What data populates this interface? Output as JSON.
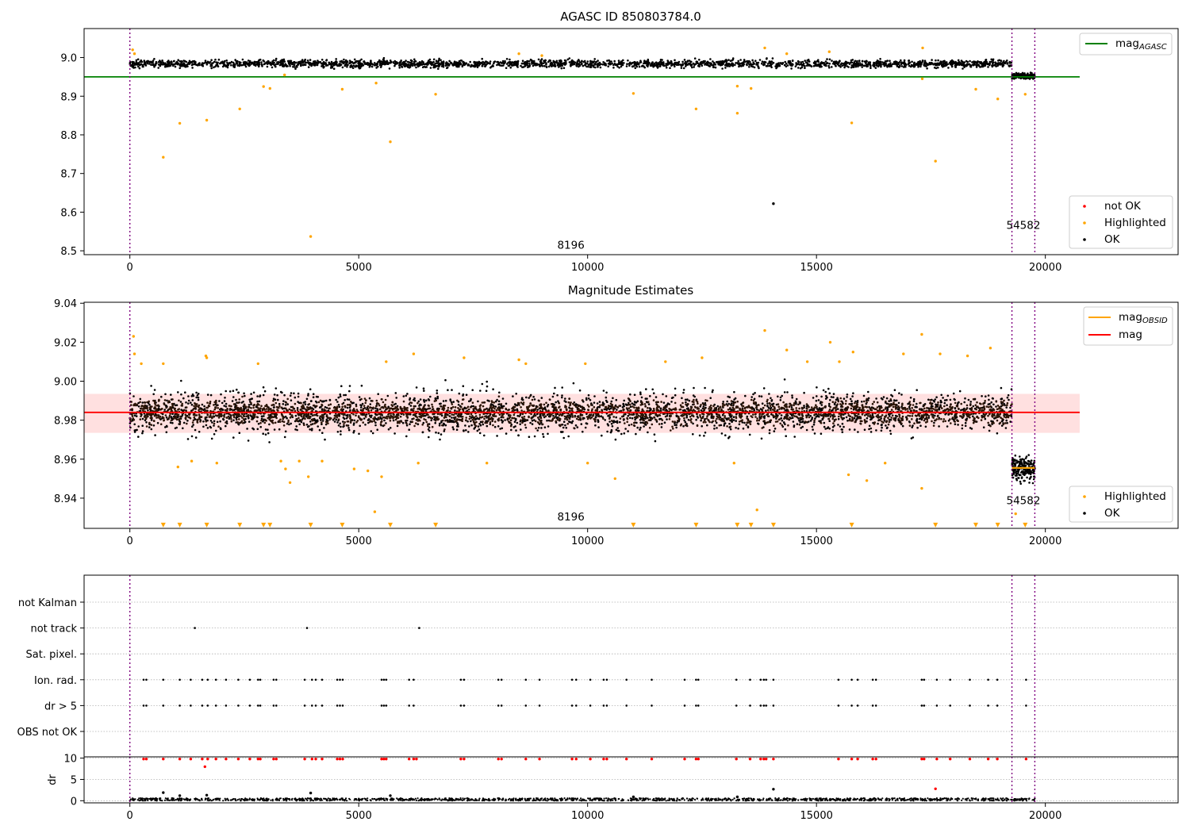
{
  "chart_data": [
    {
      "type": "scatter",
      "title": "AGASC ID 850803784.0",
      "xlim": [
        -1000,
        22900
      ],
      "ylim": [
        8.49,
        9.075
      ],
      "xticks": [
        0,
        5000,
        10000,
        15000,
        20000
      ],
      "yticks": [
        8.5,
        8.6,
        8.7,
        8.8,
        8.9,
        9.0
      ],
      "ytick_decimals": 1,
      "vlines": [
        0,
        19270,
        19770
      ],
      "annotations": [
        {
          "text": "8196",
          "x": 9635,
          "y": 8.505
        },
        {
          "text": "54582",
          "x": 19520,
          "y": 8.557
        }
      ],
      "hline": {
        "name": "mag_AGASC",
        "y": 8.95,
        "x": [
          -1000,
          20750
        ],
        "color": "#008000"
      },
      "bands": [
        {
          "x": [
            0,
            19270
          ],
          "center": 8.984,
          "halfwidth": 0.018,
          "color": "#000000"
        },
        {
          "x": [
            19270,
            19770
          ],
          "center": 8.952,
          "halfwidth": 0.012,
          "color": "#000000"
        }
      ],
      "series": [
        {
          "name": "not OK",
          "color": "#ff0000",
          "points": []
        },
        {
          "name": "Highlighted",
          "color": "#ffa500",
          "points": [
            [
              60,
              9.02
            ],
            [
              100,
              9.01
            ],
            [
              730,
              8.742
            ],
            [
              1090,
              8.83
            ],
            [
              1680,
              8.838
            ],
            [
              2400,
              8.867
            ],
            [
              2920,
              8.925
            ],
            [
              3060,
              8.92
            ],
            [
              3380,
              8.955
            ],
            [
              3950,
              8.537
            ],
            [
              4640,
              8.918
            ],
            [
              5380,
              8.934
            ],
            [
              5690,
              8.782
            ],
            [
              6680,
              8.905
            ],
            [
              8500,
              9.01
            ],
            [
              9000,
              9.005
            ],
            [
              11000,
              8.907
            ],
            [
              12370,
              8.867
            ],
            [
              13270,
              8.856
            ],
            [
              13270,
              8.926
            ],
            [
              13570,
              8.92
            ],
            [
              13870,
              9.025
            ],
            [
              14350,
              9.01
            ],
            [
              15280,
              9.015
            ],
            [
              15770,
              8.831
            ],
            [
              17320,
              9.025
            ],
            [
              17600,
              8.732
            ],
            [
              18480,
              8.918
            ],
            [
              18960,
              8.893
            ],
            [
              19560,
              8.905
            ],
            [
              17310,
              8.945
            ]
          ]
        },
        {
          "name": "OK",
          "color": "#000000",
          "points": [
            [
              14060,
              8.622
            ]
          ]
        }
      ],
      "legend": [
        {
          "label_main": "mag",
          "label_sub": "AGASC",
          "kind": "line",
          "color": "#008000"
        }
      ],
      "legend2": [
        {
          "label": "not OK",
          "kind": "dot",
          "color": "#ff0000"
        },
        {
          "label": "Highlighted",
          "kind": "dot",
          "color": "#ffa500"
        },
        {
          "label": "OK",
          "kind": "dot",
          "color": "#000000"
        }
      ]
    },
    {
      "type": "scatter",
      "title": "Magnitude Estimates",
      "xlim": [
        -1000,
        22900
      ],
      "ylim": [
        8.9245,
        9.0405
      ],
      "xticks": [
        0,
        5000,
        10000,
        15000,
        20000
      ],
      "yticks": [
        8.94,
        8.96,
        8.98,
        9.0,
        9.02,
        9.04
      ],
      "ytick_decimals": 2,
      "vlines": [
        0,
        19270,
        19770
      ],
      "annotations": [
        {
          "text": "8196",
          "x": 9635,
          "y": 8.9285
        },
        {
          "text": "54582",
          "x": 19520,
          "y": 8.937
        }
      ],
      "hline": {
        "name": "mag",
        "y": 8.984,
        "x": [
          -1000,
          20750
        ],
        "color": "#ff0000"
      },
      "shade": {
        "y": [
          8.9735,
          8.9935
        ],
        "x": [
          -1000,
          20750
        ],
        "color": "#ffcccc"
      },
      "segment": {
        "name": "mag_OBSID",
        "y": 8.9555,
        "x": [
          19270,
          19770
        ],
        "color": "#ffa500"
      },
      "bands": [
        {
          "x": [
            0,
            19270
          ],
          "center": 8.984,
          "halfwidth": 0.02,
          "color": "#000000"
        },
        {
          "x": [
            19270,
            19770
          ],
          "center": 8.955,
          "halfwidth": 0.011,
          "color": "#000000"
        },
        {
          "x": [
            0,
            19270
          ],
          "center": 8.984,
          "halfwidth": 0.011,
          "color": "#2b1406"
        }
      ],
      "series": [
        {
          "name": "Highlighted",
          "color": "#ffa500",
          "points": [
            [
              80,
              9.023
            ],
            [
              100,
              9.014
            ],
            [
              250,
              9.009
            ],
            [
              730,
              9.009
            ],
            [
              1050,
              8.956
            ],
            [
              1350,
              8.959
            ],
            [
              1660,
              9.013
            ],
            [
              1680,
              9.012
            ],
            [
              1900,
              8.958
            ],
            [
              2800,
              9.009
            ],
            [
              3300,
              8.959
            ],
            [
              3400,
              8.955
            ],
            [
              3500,
              8.948
            ],
            [
              3700,
              8.959
            ],
            [
              3900,
              8.951
            ],
            [
              4200,
              8.959
            ],
            [
              4900,
              8.955
            ],
            [
              5200,
              8.954
            ],
            [
              5350,
              8.933
            ],
            [
              5500,
              8.951
            ],
            [
              5600,
              9.01
            ],
            [
              6200,
              9.014
            ],
            [
              6300,
              8.958
            ],
            [
              7300,
              9.012
            ],
            [
              7800,
              8.958
            ],
            [
              8500,
              9.011
            ],
            [
              8650,
              9.009
            ],
            [
              9950,
              9.009
            ],
            [
              10000,
              8.958
            ],
            [
              10600,
              8.95
            ],
            [
              11700,
              9.01
            ],
            [
              12500,
              9.012
            ],
            [
              13200,
              8.958
            ],
            [
              13700,
              8.934
            ],
            [
              13870,
              9.026
            ],
            [
              14350,
              9.016
            ],
            [
              14800,
              9.01
            ],
            [
              15300,
              9.02
            ],
            [
              15500,
              9.01
            ],
            [
              15700,
              8.952
            ],
            [
              15800,
              9.015
            ],
            [
              16100,
              8.949
            ],
            [
              16500,
              8.958
            ],
            [
              16900,
              9.014
            ],
            [
              17300,
              9.024
            ],
            [
              17300,
              8.945
            ],
            [
              17700,
              9.014
            ],
            [
              18300,
              9.013
            ],
            [
              18800,
              9.017
            ],
            [
              19350,
              8.932
            ]
          ]
        },
        {
          "name": "OK",
          "color": "#000000",
          "points": []
        }
      ],
      "markers": {
        "color": "#ffa500",
        "y": 8.9262,
        "x": [
          730,
          1090,
          1680,
          2400,
          2920,
          3060,
          3950,
          4640,
          5690,
          6680,
          11000,
          12370,
          13270,
          13570,
          14060,
          15770,
          17600,
          18480,
          18960,
          19560
        ]
      },
      "legend": [
        {
          "label_main": "mag",
          "label_sub": "OBSID",
          "kind": "line",
          "color": "#ffa500"
        },
        {
          "label": "mag",
          "kind": "line",
          "color": "#ff0000"
        }
      ],
      "legend2": [
        {
          "label": "Highlighted",
          "kind": "dot",
          "color": "#ffa500"
        },
        {
          "label": "OK",
          "kind": "dot",
          "color": "#000000"
        }
      ]
    },
    {
      "type": "scatter",
      "title": "",
      "xlim": [
        -1000,
        22900
      ],
      "categories": [
        "not Kalman",
        "not track",
        "Sat. pixel.",
        "Ion. rad.",
        "dr > 5",
        "OBS not OK"
      ],
      "vlines": [
        0,
        19270,
        19770
      ],
      "flags": {
        "not track": [
          1420,
          3870,
          6320
        ],
        "Ion. rad.": [
          300,
          360,
          730,
          1090,
          1330,
          1580,
          1700,
          1880,
          2100,
          2370,
          2620,
          2800,
          2850,
          3140,
          3200,
          3820,
          3980,
          4060,
          4200,
          4530,
          4590,
          4650,
          5500,
          5550,
          5600,
          6100,
          6200,
          7230,
          7300,
          8050,
          8120,
          8650,
          8950,
          9660,
          9750,
          10060,
          10350,
          10420,
          10850,
          11400,
          12120,
          12370,
          12420,
          13250,
          13550,
          13780,
          13850,
          13900,
          14060,
          15480,
          15770,
          15900,
          16230,
          16300,
          17300,
          17350,
          17630,
          17920,
          18350,
          18750,
          18950,
          19580
        ],
        "dr > 5": [
          300,
          360,
          730,
          1090,
          1330,
          1580,
          1700,
          1880,
          2100,
          2370,
          2620,
          2800,
          2850,
          3140,
          3200,
          3820,
          3980,
          4060,
          4200,
          4530,
          4590,
          4650,
          5500,
          5550,
          5600,
          6100,
          6200,
          7230,
          7300,
          8050,
          8120,
          8650,
          8950,
          9660,
          9750,
          10060,
          10350,
          10420,
          10850,
          11400,
          12120,
          12370,
          12420,
          13250,
          13550,
          13780,
          13850,
          13900,
          14060,
          15480,
          15770,
          15900,
          16230,
          16300,
          17300,
          17350,
          17630,
          17920,
          18350,
          18750,
          18950,
          19580
        ]
      }
    },
    {
      "type": "scatter",
      "ylabel": "dr",
      "xlim": [
        -1000,
        22900
      ],
      "ylim": [
        -0.5,
        10.3
      ],
      "xticks": [
        0,
        5000,
        10000,
        15000,
        20000
      ],
      "yticks": [
        0,
        5,
        10
      ],
      "ytick_decimals": 0,
      "vlines": [
        0,
        19270,
        19770
      ],
      "baseline": {
        "x": [
          0,
          19770
        ],
        "y_min": 0.0,
        "y_max": 0.6,
        "color": "#000000"
      },
      "series": [
        {
          "name": "not OK",
          "color": "#ff0000",
          "points": [
            [
              300,
              9.8
            ],
            [
              360,
              9.8
            ],
            [
              730,
              9.8
            ],
            [
              1090,
              9.8
            ],
            [
              1330,
              9.8
            ],
            [
              1580,
              9.8
            ],
            [
              1640,
              8.0
            ],
            [
              1700,
              9.8
            ],
            [
              1880,
              9.8
            ],
            [
              2100,
              9.8
            ],
            [
              2370,
              9.8
            ],
            [
              2620,
              9.8
            ],
            [
              2800,
              9.8
            ],
            [
              2850,
              9.8
            ],
            [
              3140,
              9.8
            ],
            [
              3200,
              9.8
            ],
            [
              3820,
              9.8
            ],
            [
              3980,
              9.8
            ],
            [
              4060,
              9.8
            ],
            [
              4200,
              9.8
            ],
            [
              4530,
              9.8
            ],
            [
              4590,
              9.8
            ],
            [
              4650,
              9.8
            ],
            [
              5500,
              9.8
            ],
            [
              5550,
              9.8
            ],
            [
              5600,
              9.8
            ],
            [
              6100,
              9.8
            ],
            [
              6200,
              9.8
            ],
            [
              6260,
              9.8
            ],
            [
              7230,
              9.8
            ],
            [
              7300,
              9.8
            ],
            [
              8050,
              9.8
            ],
            [
              8120,
              9.8
            ],
            [
              8650,
              9.8
            ],
            [
              8950,
              9.8
            ],
            [
              9660,
              9.8
            ],
            [
              9750,
              9.8
            ],
            [
              10060,
              9.8
            ],
            [
              10350,
              9.8
            ],
            [
              10420,
              9.8
            ],
            [
              10850,
              9.8
            ],
            [
              11400,
              9.8
            ],
            [
              12120,
              9.8
            ],
            [
              12370,
              9.8
            ],
            [
              12420,
              9.8
            ],
            [
              13250,
              9.8
            ],
            [
              13550,
              9.8
            ],
            [
              13780,
              9.8
            ],
            [
              13850,
              9.8
            ],
            [
              13900,
              9.8
            ],
            [
              14060,
              9.8
            ],
            [
              15480,
              9.8
            ],
            [
              15770,
              9.8
            ],
            [
              15900,
              9.8
            ],
            [
              16230,
              9.8
            ],
            [
              16300,
              9.8
            ],
            [
              17300,
              9.8
            ],
            [
              17350,
              9.8
            ],
            [
              17600,
              2.8
            ],
            [
              17630,
              9.8
            ],
            [
              17920,
              9.8
            ],
            [
              18350,
              9.8
            ],
            [
              18750,
              9.8
            ],
            [
              18950,
              9.8
            ],
            [
              19580,
              9.8
            ]
          ]
        },
        {
          "name": "OK",
          "color": "#000000",
          "points": [
            [
              730,
              1.9
            ],
            [
              1090,
              1.2
            ],
            [
              1680,
              1.3
            ],
            [
              3950,
              1.8
            ],
            [
              5690,
              1.2
            ],
            [
              11000,
              0.9
            ],
            [
              14060,
              2.7
            ],
            [
              13270,
              0.9
            ]
          ]
        }
      ]
    }
  ]
}
